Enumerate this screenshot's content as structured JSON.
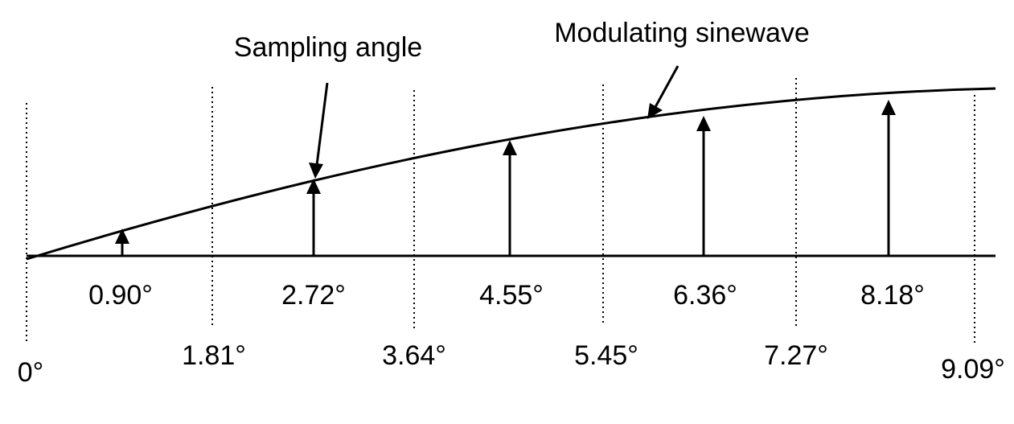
{
  "annotations": {
    "sampling_angle": "Sampling angle",
    "modulating_sinewave": "Modulating sinewave"
  },
  "sample_labels": [
    "0.90°",
    "2.72°",
    "4.55°",
    "6.36°",
    "8.18°"
  ],
  "boundary_labels": [
    "0°",
    "1.81°",
    "3.64°",
    "5.45°",
    "7.27°",
    "9.09°"
  ]
}
